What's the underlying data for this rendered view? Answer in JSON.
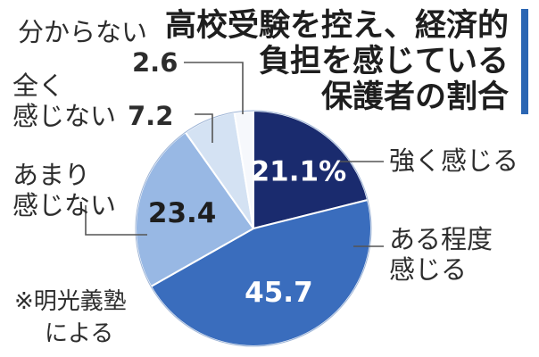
{
  "title": {
    "line1": "高校受験を控え、経済的",
    "line2": "負担を感じている",
    "line3": "保護者の割合"
  },
  "note": {
    "line1": "※明光義塾",
    "line2": "による"
  },
  "chart_data": {
    "type": "pie",
    "start": "12 o'clock, clockwise",
    "unit": "%",
    "slices": [
      {
        "label": "強く感じる",
        "value": 21.1,
        "display": "21.1%",
        "color": "#1a2b6e"
      },
      {
        "label": "ある程度\n感じる",
        "value": 45.7,
        "display": "45.7",
        "color": "#3a6dbd"
      },
      {
        "label": "あまり\n感じない",
        "value": 23.4,
        "display": "23.4",
        "color": "#98b8e4"
      },
      {
        "label": "全く\n感じない",
        "value": 7.2,
        "display": "7.2",
        "color": "#d4e2f3"
      },
      {
        "label": "分からない",
        "value": 2.6,
        "display": "2.6",
        "color": "#f6f8fc"
      }
    ]
  },
  "labels": {
    "strong": "強く感じる",
    "somewhat_1": "ある程度",
    "somewhat_2": "感じる",
    "notmuch_1": "あまり",
    "notmuch_2": "感じない",
    "notatall_1": "全く",
    "notatall_2": "感じない",
    "notatall_value": "7.2",
    "dontknow": "分からない",
    "dontknow_value": "2.6"
  }
}
